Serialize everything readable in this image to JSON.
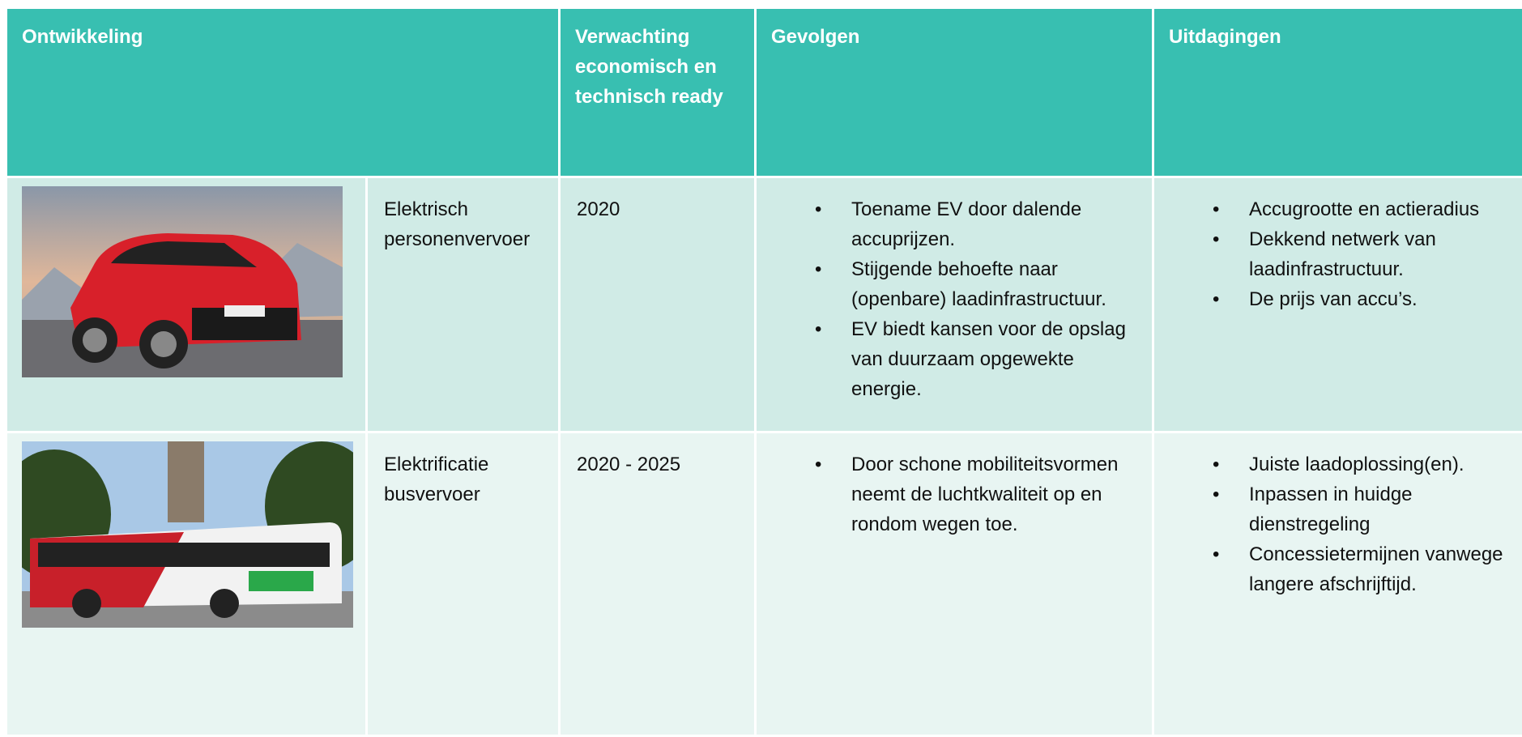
{
  "table": {
    "header": [
      "Ontwikkeling",
      "Verwachting economisch en technisch ready",
      "Gevolgen",
      "Uitdagingen"
    ],
    "rows": [
      {
        "name": "Elektrisch personenvervoer",
        "period": "2020",
        "consequences": [
          "Toename EV door dalende accuprijzen.",
          "Stijgende behoefte naar (openbare) laadinfrastructuur.",
          "EV biedt kansen voor de opslag van duurzaam opgewekte energie."
        ],
        "challenges": [
          "Accugrootte en actieradius",
          "Dekkend netwerk van laadinfrastructuur.",
          "De prijs van accu’s."
        ]
      },
      {
        "name": "Elektrificatie busvervoer",
        "period": "2020 - 2025",
        "consequences": [
          "Door schone mobiliteitsvormen neemt de luchtkwaliteit op en rondom wegen toe."
        ],
        "challenges": [
          "Juiste laadoplossing(en).",
          "Inpassen in huidge dienstregeling",
          "Concessietermijnen vanwege langere afschrijftijd."
        ]
      }
    ]
  }
}
